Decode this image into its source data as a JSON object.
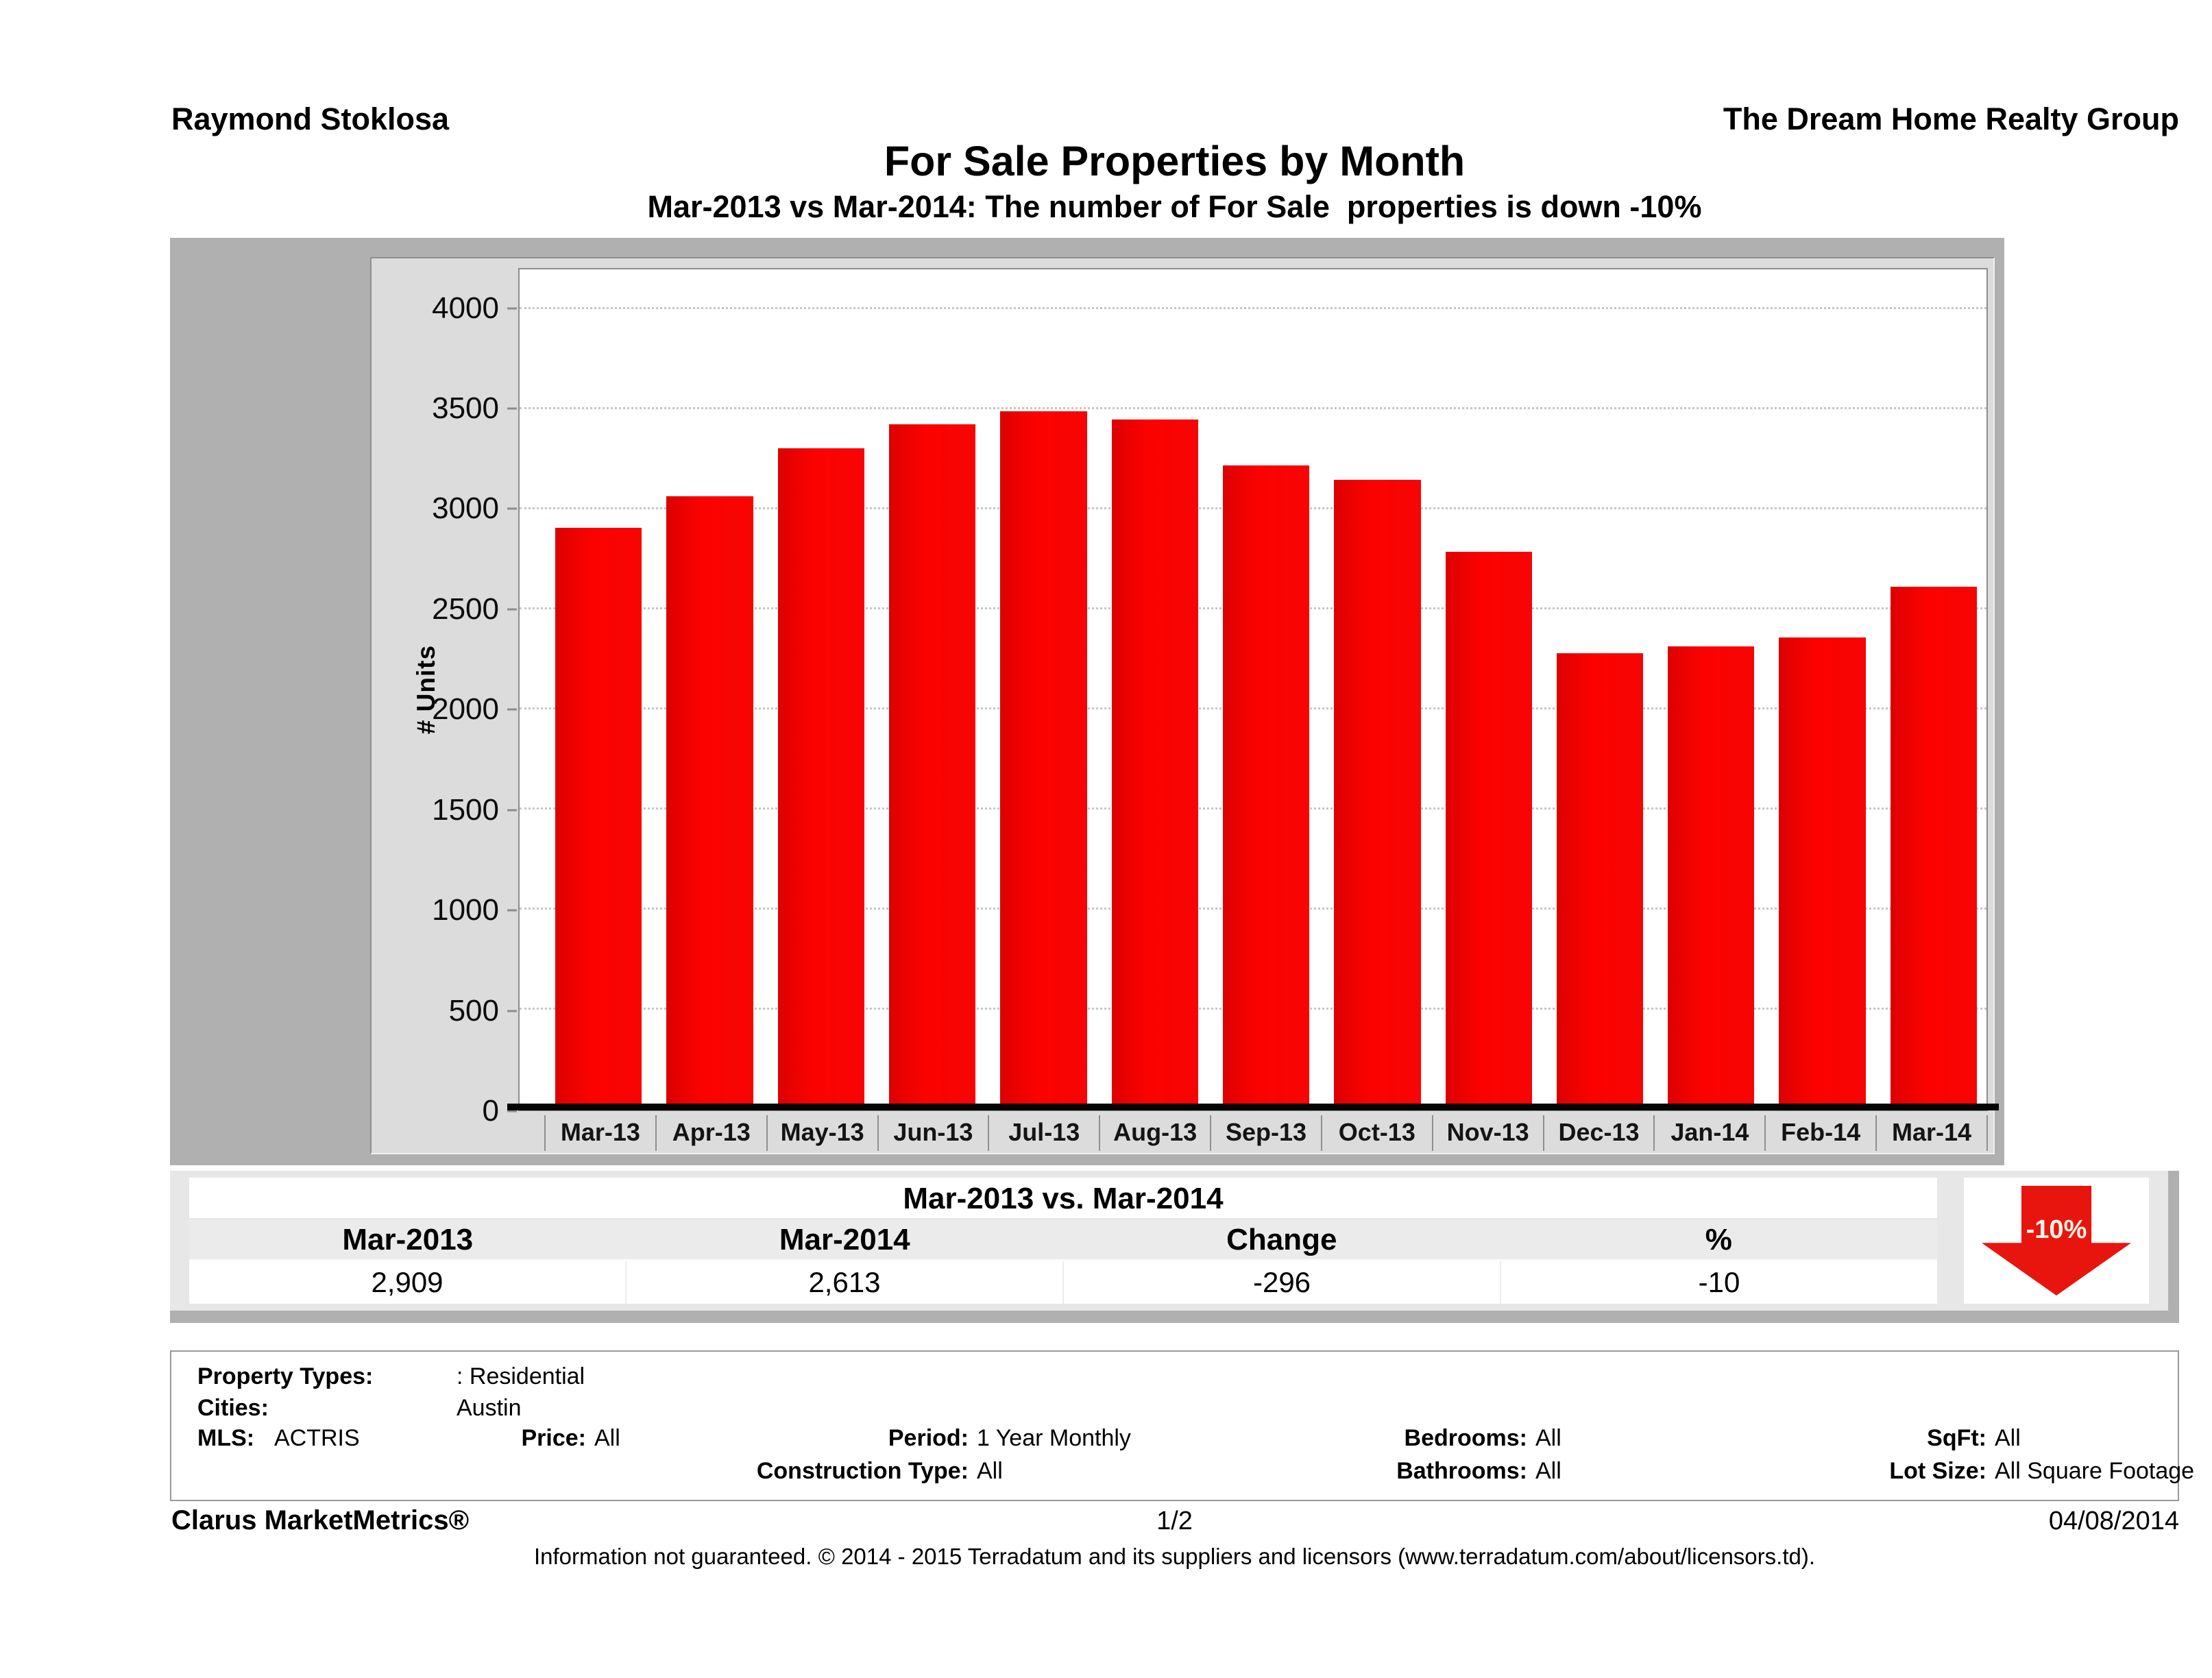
{
  "header": {
    "agent_name": "Raymond Stoklosa",
    "company": "The Dream Home Realty Group"
  },
  "title": "For Sale Properties by Month",
  "subtitle": "Mar-2013 vs Mar-2014: The number of For Sale  properties is down -10%",
  "chart_data": {
    "type": "bar",
    "title": "For Sale Properties by Month",
    "xlabel": "",
    "ylabel": "# Units",
    "ylim": [
      0,
      4200
    ],
    "yticks": [
      0,
      500,
      1000,
      1500,
      2000,
      2500,
      3000,
      3500,
      4000
    ],
    "grid": "horizontal-dotted",
    "legend": "none",
    "bar_color": "#fb0200",
    "categories": [
      "Mar-13",
      "Apr-13",
      "May-13",
      "Jun-13",
      "Jul-13",
      "Aug-13",
      "Sep-13",
      "Oct-13",
      "Nov-13",
      "Dec-13",
      "Jan-14",
      "Feb-14",
      "Mar-14"
    ],
    "values": [
      2909,
      3065,
      3305,
      3425,
      3490,
      3450,
      3220,
      3150,
      2790,
      2280,
      2315,
      2360,
      2613
    ]
  },
  "summary_table": {
    "title": "Mar-2013 vs. Mar-2014",
    "columns": [
      "Mar-2013",
      "Mar-2014",
      "Change",
      "%"
    ],
    "values": [
      "2,909",
      "2,613",
      "-296",
      "-10"
    ],
    "badge": {
      "label": "-10%",
      "direction": "down",
      "color": "#e8150f"
    }
  },
  "criteria": {
    "property_types_label": "Property Types:",
    "property_types": ": Residential",
    "cities_label": "Cities:",
    "cities": "Austin",
    "mls_label": "MLS:",
    "mls": "ACTRIS",
    "price_label": "Price:",
    "price": "All",
    "period_label": "Period:",
    "period": "1 Year Monthly",
    "bedrooms_label": "Bedrooms:",
    "bedrooms": "All",
    "sqft_label": "SqFt:",
    "sqft": "All",
    "construction_label": "Construction Type:",
    "construction": "All",
    "bathrooms_label": "Bathrooms:",
    "bathrooms": "All",
    "lot_size_label": "Lot Size:",
    "lot_size": "All Square Footage"
  },
  "footer": {
    "brand": "Clarus MarketMetrics®",
    "page": "1/2",
    "date": "04/08/2014",
    "disclaimer": "Information not guaranteed. © 2014 - 2015 Terradatum and its suppliers and licensors (www.terradatum.com/about/licensors.td)."
  }
}
